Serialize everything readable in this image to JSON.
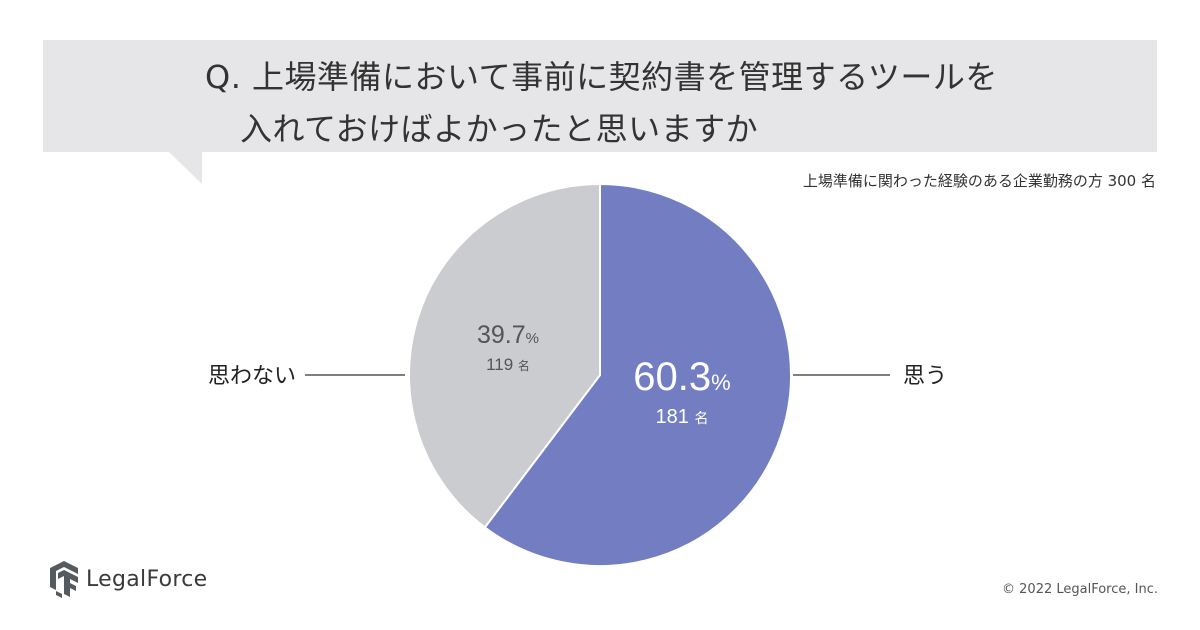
{
  "question": {
    "line1": "Q. 上場準備において事前に契約書を管理するツールを",
    "line2": "入れておけばよかったと思いますか"
  },
  "survey_note": "上場準備に関わった経験のある企業勤務の方 300 名",
  "footer": {
    "logo_text": "LegalForce",
    "copyright": "© 2022 LegalForce, Inc."
  },
  "colors": {
    "yes": "#737ec2",
    "no": "#cbcccf",
    "bubble": "#e6e6e8"
  },
  "chart_data": {
    "type": "pie",
    "title": "",
    "categories": [
      "思う",
      "思わない"
    ],
    "values": [
      60.3,
      39.7
    ],
    "counts": [
      181,
      119
    ],
    "percent_labels": [
      "60.3",
      "39.7"
    ],
    "percent_sign": "%",
    "count_labels": [
      "181",
      "119"
    ],
    "count_unit": "名"
  }
}
